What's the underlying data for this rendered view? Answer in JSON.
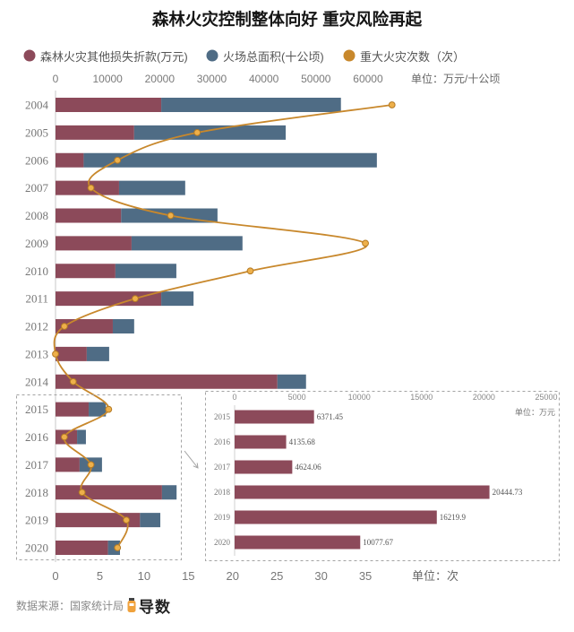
{
  "chart_data": [
    {
      "type": "bar",
      "orientation": "horizontal",
      "stacked": true,
      "title": "森林火灾控制整体向好 重灾风险再起",
      "legend_position": "top",
      "grid": false,
      "categories": [
        "2004",
        "2005",
        "2006",
        "2007",
        "2008",
        "2009",
        "2010",
        "2011",
        "2012",
        "2013",
        "2014",
        "2015",
        "2016",
        "2017",
        "2018",
        "2019",
        "2020"
      ],
      "series": [
        {
          "name": "森林火灾其他损失折款(万元)",
          "type": "bar",
          "axis": "top",
          "color": "#8c4a5a",
          "values": [
            20300,
            15100,
            5400,
            12200,
            12600,
            14600,
            11500,
            20300,
            11000,
            6000,
            42600,
            6371.45,
            4135.68,
            4624.06,
            20444.73,
            16219.9,
            10077.67
          ]
        },
        {
          "name": "火场总面积(十公顷)",
          "type": "bar",
          "axis": "top",
          "color": "#4f6c85",
          "values": [
            34500,
            29100,
            56300,
            12700,
            18500,
            21300,
            11700,
            6200,
            4100,
            4300,
            5500,
            3300,
            1700,
            4300,
            2800,
            3900,
            2300
          ]
        },
        {
          "name": "重大火灾次数（次）",
          "type": "line",
          "axis": "bottom",
          "color": "#c8882c",
          "values": [
            38,
            16,
            7,
            4,
            13,
            35,
            22,
            9,
            1,
            0,
            2,
            6,
            1,
            4,
            3,
            8,
            7
          ]
        }
      ],
      "top_axis": {
        "label": "单位：万元/十公顷",
        "ticks": [
          0,
          10000,
          20000,
          30000,
          40000,
          50000,
          60000
        ],
        "range": [
          0,
          68000
        ]
      },
      "bottom_axis": {
        "label": "单位：次",
        "ticks": [
          0,
          5,
          10,
          15,
          20,
          25,
          30,
          35
        ],
        "range": [
          0,
          40
        ]
      }
    },
    {
      "type": "bar",
      "orientation": "horizontal",
      "grid": false,
      "color": "#8c4a5a",
      "categories": [
        "2015",
        "2016",
        "2017",
        "2018",
        "2019",
        "2020"
      ],
      "values": [
        6371.45,
        4135.68,
        4624.06,
        20444.73,
        16219.9,
        10077.67
      ],
      "x_axis": {
        "label": "单位：万元",
        "ticks": [
          0,
          5000,
          10000,
          15000,
          20000,
          25000
        ],
        "range": [
          0,
          25000
        ]
      }
    }
  ],
  "source": "数据来源：国家统计局",
  "logo": {
    "text": "导数"
  }
}
